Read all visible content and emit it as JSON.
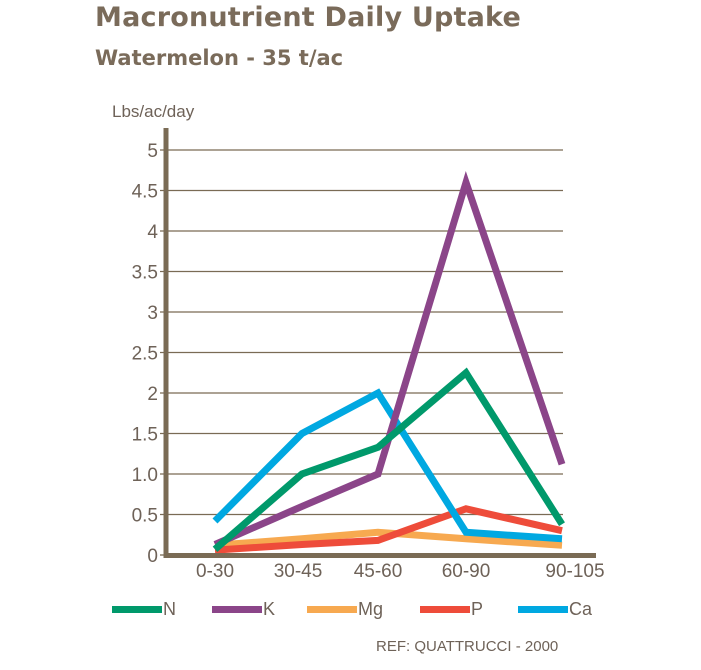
{
  "title": "Macronutrient Daily Uptake",
  "subtitle": "Watermelon - 35 t/ac",
  "reference": "REF: QUATTRUCCI - 2000",
  "colors": {
    "axis": "#7a6b55",
    "grid": "#7a6b55",
    "text": "#6e6258",
    "N": "#00996b",
    "K": "#8b4589",
    "Mg": "#f7a950",
    "P": "#ee4c3a",
    "Ca": "#00a8e1"
  },
  "legend": [
    {
      "name": "N",
      "color": "#00996b"
    },
    {
      "name": "K",
      "color": "#8b4589"
    },
    {
      "name": "Mg",
      "color": "#f7a950"
    },
    {
      "name": "P",
      "color": "#ee4c3a"
    },
    {
      "name": "Ca",
      "color": "#00a8e1"
    }
  ],
  "chart_data": {
    "type": "line",
    "title": "Macronutrient Daily Uptake",
    "subtitle": "Watermelon - 35 t/ac",
    "xlabel": "",
    "ylabel": "Lbs/ac/day",
    "categories": [
      "0-30",
      "30-45",
      "45-60",
      "60-90",
      "90-105"
    ],
    "yticks": [
      "0",
      "0.5",
      "1.0",
      "1.5",
      "2",
      "2.5",
      "3",
      "3.5",
      "4",
      "4.5",
      "5"
    ],
    "ylim": [
      0,
      5
    ],
    "grid": true,
    "legend_position": "bottom",
    "series": [
      {
        "name": "N",
        "color": "#00996b",
        "values": [
          0.07,
          1.0,
          1.33,
          2.25,
          0.38
        ]
      },
      {
        "name": "K",
        "color": "#8b4589",
        "values": [
          0.13,
          0.6,
          1.0,
          4.6,
          1.12
        ]
      },
      {
        "name": "Mg",
        "color": "#f7a950",
        "values": [
          0.12,
          0.2,
          0.28,
          0.2,
          0.12
        ]
      },
      {
        "name": "P",
        "color": "#ee4c3a",
        "values": [
          0.06,
          0.13,
          0.18,
          0.57,
          0.3
        ]
      },
      {
        "name": "Ca",
        "color": "#00a8e1",
        "values": [
          0.42,
          1.5,
          2.0,
          0.28,
          0.2
        ]
      }
    ],
    "annotation": "REF: QUATTRUCCI - 2000"
  }
}
